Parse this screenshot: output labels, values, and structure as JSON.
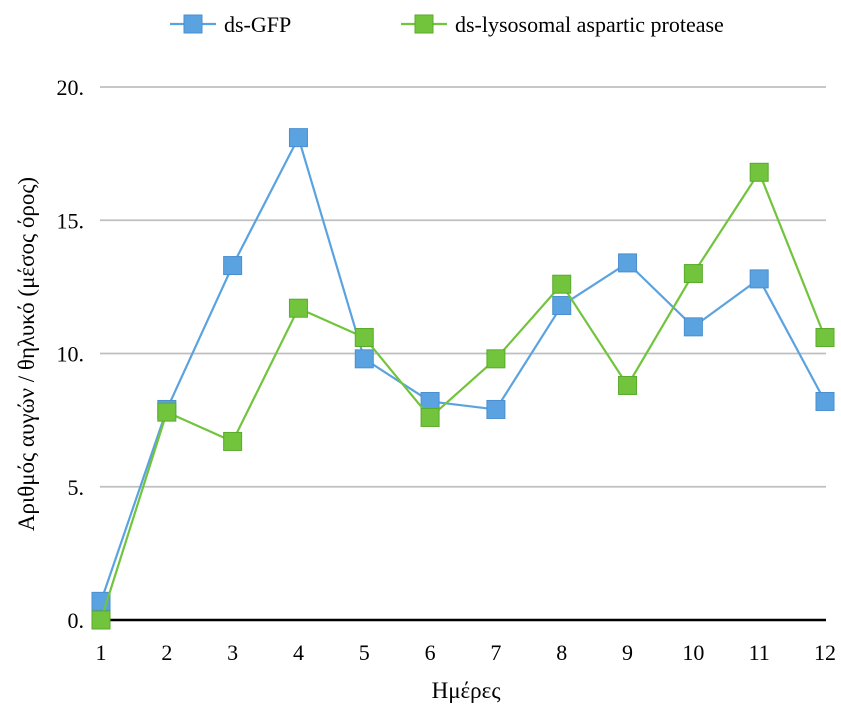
{
  "chart_data": {
    "type": "line",
    "categories": [
      "1",
      "2",
      "3",
      "4",
      "5",
      "6",
      "7",
      "8",
      "9",
      "10",
      "11",
      "12"
    ],
    "series": [
      {
        "name": "ds-GFP",
        "values": [
          0.7,
          7.9,
          13.3,
          18.1,
          9.8,
          8.2,
          7.9,
          11.8,
          13.4,
          11.0,
          12.8,
          8.2
        ],
        "color": "#5ba3e0",
        "edge": "#4a8fd0",
        "line": "#5ba3e0"
      },
      {
        "name": "ds-lysosomal aspartic protease",
        "values": [
          0.0,
          7.8,
          6.7,
          11.7,
          10.6,
          7.6,
          9.8,
          12.6,
          8.8,
          13.0,
          16.8,
          10.6
        ],
        "color": "#71c43c",
        "edge": "#5aab2b",
        "line": "#71c43c"
      }
    ],
    "y_ticks": [
      "0.",
      "5.",
      "10.",
      "15.",
      "20."
    ],
    "ylim": [
      0,
      20
    ],
    "xlabel": "Ημέρες",
    "ylabel": "Αριθμός αυγών / θηλυκό (μέσος όρος)",
    "grid": true,
    "legend_position": "top"
  }
}
